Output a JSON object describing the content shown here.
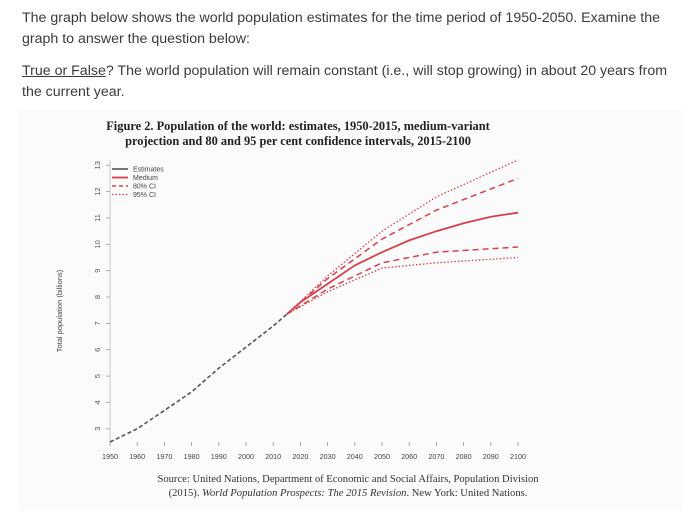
{
  "question": {
    "intro": "The graph below shows the world population estimates for the time period of 1950-2050. Examine the graph to answer the question below:",
    "tf_label": "True or False",
    "prompt": "? The world population will remain constant (i.e., will stop growing) in about 20 years from the current year."
  },
  "figure": {
    "title_line1": "Figure 2. Population of the world: estimates, 1950-2015, medium-variant",
    "title_line2": "projection and 80 and 95 per cent confidence intervals, 2015-2100",
    "source_prefix": "Source: United Nations, Department of Economic and Social Affairs, Population Division",
    "source_year": "(2015). ",
    "source_title": "World Population Prospects: The 2015 Revision",
    "source_suffix": ". New York: United Nations."
  },
  "chart_data": {
    "type": "line",
    "title": "Figure 2. Population of the world: estimates, 1950-2015, medium-variant projection and 80 and 95 per cent confidence intervals, 2015-2100",
    "ylabel": "Total population (billions)",
    "xlabel": "",
    "xlim": [
      1950,
      2100
    ],
    "ylim": [
      2.5,
      13.2
    ],
    "xticks": [
      1950,
      1960,
      1970,
      1980,
      1990,
      2000,
      2010,
      2020,
      2030,
      2040,
      2050,
      2060,
      2070,
      2080,
      2090,
      2100
    ],
    "yticks": [
      3,
      4,
      5,
      6,
      7,
      8,
      9,
      10,
      11,
      12,
      13
    ],
    "legend": [
      "Estimates",
      "Medium",
      "80% CI",
      "95% CI"
    ],
    "legend_position": "top-left",
    "colors": {
      "estimates": "#555555",
      "projection": "#d9404b"
    },
    "series": [
      {
        "name": "Estimates",
        "x": [
          1950,
          1960,
          1970,
          1980,
          1990,
          2000,
          2010,
          2015
        ],
        "values": [
          2.5,
          3.0,
          3.7,
          4.4,
          5.3,
          6.1,
          6.9,
          7.35
        ]
      },
      {
        "name": "Medium",
        "x": [
          2015,
          2020,
          2030,
          2040,
          2050,
          2060,
          2070,
          2080,
          2090,
          2100
        ],
        "values": [
          7.35,
          7.8,
          8.5,
          9.2,
          9.7,
          10.15,
          10.5,
          10.8,
          11.05,
          11.2
        ]
      },
      {
        "name": "80% CI upper",
        "x": [
          2015,
          2030,
          2050,
          2070,
          2100
        ],
        "values": [
          7.35,
          8.7,
          10.2,
          11.3,
          12.5
        ]
      },
      {
        "name": "80% CI lower",
        "x": [
          2015,
          2030,
          2050,
          2070,
          2100
        ],
        "values": [
          7.35,
          8.3,
          9.3,
          9.7,
          9.9
        ]
      },
      {
        "name": "95% CI upper",
        "x": [
          2015,
          2030,
          2050,
          2070,
          2100
        ],
        "values": [
          7.35,
          8.8,
          10.5,
          11.8,
          13.2
        ]
      },
      {
        "name": "95% CI lower",
        "x": [
          2015,
          2030,
          2050,
          2070,
          2100
        ],
        "values": [
          7.35,
          8.2,
          9.1,
          9.3,
          9.5
        ]
      }
    ]
  }
}
